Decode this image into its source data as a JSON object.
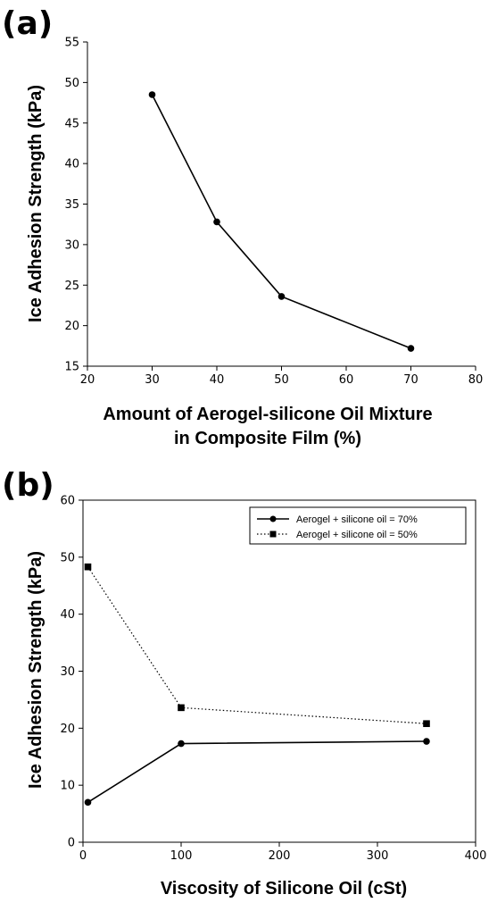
{
  "chart_data": [
    {
      "type": "line",
      "panel_label": "(a)",
      "xlabel_line1": "Amount of Aerogel-silicone Oil Mixture",
      "xlabel_line2": "in Composite Film (%)",
      "ylabel": "Ice Adhesion Strength (kPa)",
      "xlim": [
        20,
        80
      ],
      "ylim": [
        15,
        55
      ],
      "xticks": [
        20,
        30,
        40,
        50,
        60,
        70,
        80
      ],
      "yticks": [
        15,
        20,
        25,
        30,
        35,
        40,
        45,
        50,
        55
      ],
      "grid": false,
      "series": [
        {
          "marker": "circle",
          "line": "solid",
          "x": [
            30,
            40,
            50,
            70
          ],
          "y": [
            48.5,
            32.8,
            23.6,
            17.2
          ]
        }
      ]
    },
    {
      "type": "line",
      "panel_label": "(b)",
      "xlabel": "Viscosity of Silicone Oil (cSt)",
      "ylabel": "Ice Adhesion Strength (kPa)",
      "xlim": [
        0,
        400
      ],
      "ylim": [
        0,
        60
      ],
      "xticks": [
        0,
        100,
        200,
        300,
        400
      ],
      "yticks": [
        0,
        10,
        20,
        30,
        40,
        50,
        60
      ],
      "grid": false,
      "legend_position": "top-right",
      "series": [
        {
          "name": "Aerogel + silicone oil = 70%",
          "marker": "circle",
          "line": "solid",
          "x": [
            5,
            100,
            350
          ],
          "y": [
            7.0,
            17.3,
            17.7
          ]
        },
        {
          "name": "Aerogel + silicone oil = 50%",
          "marker": "square",
          "line": "dotted",
          "x": [
            5,
            100,
            350
          ],
          "y": [
            48.3,
            23.6,
            20.8
          ]
        }
      ]
    }
  ]
}
